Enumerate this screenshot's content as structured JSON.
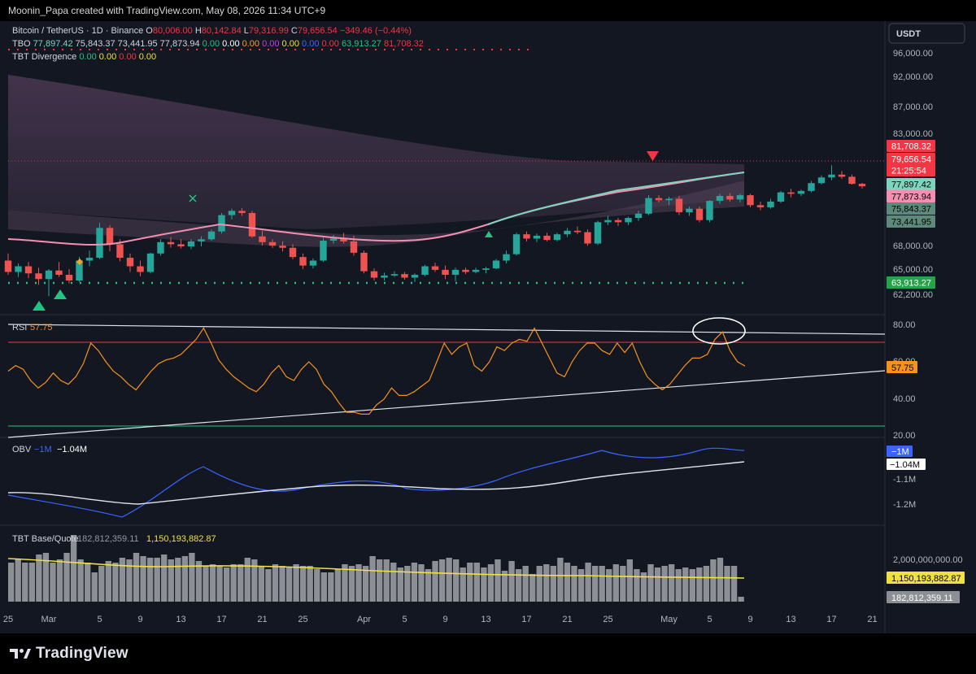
{
  "header": {
    "attribution": "Moonin_Papa created with TradingView.com, May 08, 2026 11:34 UTC+9"
  },
  "footer": {
    "brand": "TradingView",
    "logo_icon": "tradingview-logo-icon"
  },
  "legend": {
    "symbol": "Bitcoin / TetherUS · 1D · Binance",
    "ohlc": [
      {
        "label": "O",
        "value": "80,006.00"
      },
      {
        "label": "H",
        "value": "80,142.84"
      },
      {
        "label": "L",
        "value": "79,316.99"
      },
      {
        "label": "C",
        "value": "79,656.54"
      }
    ],
    "change": "−349.46 (−0.44%)",
    "tbo_label": "TBO",
    "tbo_values": [
      {
        "text": "77,897.42",
        "color": "#7fd4bd"
      },
      {
        "text": "75,843.37",
        "color": "#d1d4dc"
      },
      {
        "text": "73,441.95",
        "color": "#d1d4dc"
      },
      {
        "text": "77,873.94",
        "color": "#d1d4dc"
      },
      {
        "text": "0.00",
        "color": "#26c281"
      },
      {
        "text": "0.00",
        "color": "#ffffff"
      },
      {
        "text": "0.00",
        "color": "#f7a21b"
      },
      {
        "text": "0.00",
        "color": "#c33ce8"
      },
      {
        "text": "0.00",
        "color": "#f0e040"
      },
      {
        "text": "0.00",
        "color": "#3b64ff"
      },
      {
        "text": "0.00",
        "color": "#f23645"
      },
      {
        "text": "63,913.27",
        "color": "#26c281"
      },
      {
        "text": "81,708.32",
        "color": "#f23645"
      }
    ],
    "div_label": "TBT Divergence",
    "div_values": [
      {
        "text": "0.00",
        "color": "#26c281"
      },
      {
        "text": "0.00",
        "color": "#f0e040"
      },
      {
        "text": "0.00",
        "color": "#f23645"
      },
      {
        "text": "0.00",
        "color": "#f0e040"
      }
    ]
  },
  "currency_badge": "USDT",
  "chart_data": {
    "type": "candlestick",
    "price_axis_ticks": [
      "96,000.00",
      "92,000.00",
      "87,000.00",
      "83,000.00",
      "68,000.00",
      "65,000.00",
      "62,200.00"
    ],
    "price_badges": [
      {
        "text": "81,708.32",
        "bg": "#f23645",
        "fg": "#ffffff"
      },
      {
        "text": "79,656.54",
        "bg": "#f23645",
        "fg": "#ffffff"
      },
      {
        "text": "21:25:54",
        "bg": "#f23645",
        "fg": "#ffffff"
      },
      {
        "text": "77,897.42",
        "bg": "#7fd4bd",
        "fg": "#000000"
      },
      {
        "text": "77,873.94",
        "bg": "#f48fb1",
        "fg": "#000000"
      },
      {
        "text": "75,843.37",
        "bg": "#5d8a7a",
        "fg": "#000000"
      },
      {
        "text": "73,441.95",
        "bg": "#5d8a7a",
        "fg": "#000000"
      },
      {
        "text": "63,913.27",
        "bg": "#26a248",
        "fg": "#ffffff"
      }
    ],
    "x_labels": [
      {
        "text": "25",
        "x": -10
      },
      {
        "text": "Mar",
        "x": -6
      },
      {
        "text": "5",
        "x": -1
      },
      {
        "text": "9",
        "x": 3
      },
      {
        "text": "13",
        "x": 7
      },
      {
        "text": "17",
        "x": 11
      },
      {
        "text": "21",
        "x": 15
      },
      {
        "text": "25",
        "x": 19
      },
      {
        "text": "Apr",
        "x": 25
      },
      {
        "text": "5",
        "x": 29
      },
      {
        "text": "9",
        "x": 33
      },
      {
        "text": "13",
        "x": 37
      },
      {
        "text": "17",
        "x": 41
      },
      {
        "text": "21",
        "x": 45
      },
      {
        "text": "25",
        "x": 49
      },
      {
        "text": "May",
        "x": 55
      },
      {
        "text": "5",
        "x": 59
      },
      {
        "text": "9",
        "x": 63
      },
      {
        "text": "13",
        "x": 67
      },
      {
        "text": "17",
        "x": 71
      },
      {
        "text": "21",
        "x": 75
      }
    ],
    "candles": [
      {
        "x": -10,
        "o": 69200,
        "h": 70200,
        "l": 67200,
        "c": 67600
      },
      {
        "x": -9,
        "o": 67600,
        "h": 68800,
        "l": 66900,
        "c": 68400
      },
      {
        "x": -8,
        "o": 68400,
        "h": 69000,
        "l": 66700,
        "c": 67400
      },
      {
        "x": -7,
        "o": 67400,
        "h": 68200,
        "l": 65800,
        "c": 66600
      },
      {
        "x": -6,
        "o": 66600,
        "h": 68000,
        "l": 64200,
        "c": 67800
      },
      {
        "x": -5,
        "o": 67800,
        "h": 69000,
        "l": 66900,
        "c": 67200
      },
      {
        "x": -4,
        "o": 67200,
        "h": 68000,
        "l": 66000,
        "c": 66400
      },
      {
        "x": -3,
        "o": 66400,
        "h": 69700,
        "l": 66200,
        "c": 69200
      },
      {
        "x": -2,
        "o": 69200,
        "h": 70600,
        "l": 68400,
        "c": 69600
      },
      {
        "x": -1,
        "o": 69600,
        "h": 74500,
        "l": 69400,
        "c": 73800
      },
      {
        "x": 0,
        "o": 73800,
        "h": 74200,
        "l": 70500,
        "c": 71500
      },
      {
        "x": 1,
        "o": 71500,
        "h": 72200,
        "l": 69100,
        "c": 69600
      },
      {
        "x": 2,
        "o": 69600,
        "h": 70200,
        "l": 67600,
        "c": 68400
      },
      {
        "x": 3,
        "o": 68400,
        "h": 69200,
        "l": 67000,
        "c": 67600
      },
      {
        "x": 4,
        "o": 67600,
        "h": 70300,
        "l": 67400,
        "c": 70200
      },
      {
        "x": 5,
        "o": 70200,
        "h": 72200,
        "l": 69900,
        "c": 71800
      },
      {
        "x": 6,
        "o": 71800,
        "h": 72500,
        "l": 71000,
        "c": 71500
      },
      {
        "x": 7,
        "o": 71500,
        "h": 72200,
        "l": 70900,
        "c": 71200
      },
      {
        "x": 8,
        "o": 71200,
        "h": 72200,
        "l": 70800,
        "c": 71900
      },
      {
        "x": 9,
        "o": 71900,
        "h": 72600,
        "l": 71200,
        "c": 72200
      },
      {
        "x": 10,
        "o": 72200,
        "h": 73600,
        "l": 72000,
        "c": 73300
      },
      {
        "x": 11,
        "o": 73300,
        "h": 75900,
        "l": 73000,
        "c": 75600
      },
      {
        "x": 12,
        "o": 75600,
        "h": 76500,
        "l": 75000,
        "c": 76200
      },
      {
        "x": 13,
        "o": 76200,
        "h": 76600,
        "l": 75500,
        "c": 75900
      },
      {
        "x": 14,
        "o": 75900,
        "h": 76200,
        "l": 72400,
        "c": 72600
      },
      {
        "x": 15,
        "o": 72600,
        "h": 73400,
        "l": 71300,
        "c": 71800
      },
      {
        "x": 16,
        "o": 71800,
        "h": 72200,
        "l": 71000,
        "c": 71300
      },
      {
        "x": 17,
        "o": 71300,
        "h": 71900,
        "l": 70500,
        "c": 71000
      },
      {
        "x": 18,
        "o": 71000,
        "h": 71500,
        "l": 69400,
        "c": 69700
      },
      {
        "x": 19,
        "o": 69700,
        "h": 70200,
        "l": 68000,
        "c": 68500
      },
      {
        "x": 20,
        "o": 68500,
        "h": 69500,
        "l": 68100,
        "c": 69200
      },
      {
        "x": 21,
        "o": 69200,
        "h": 72400,
        "l": 69000,
        "c": 72000
      },
      {
        "x": 22,
        "o": 72000,
        "h": 72800,
        "l": 71600,
        "c": 72300
      },
      {
        "x": 23,
        "o": 72300,
        "h": 73100,
        "l": 71600,
        "c": 71900
      },
      {
        "x": 24,
        "o": 71900,
        "h": 72700,
        "l": 69900,
        "c": 70300
      },
      {
        "x": 25,
        "o": 70300,
        "h": 70600,
        "l": 67400,
        "c": 67700
      },
      {
        "x": 26,
        "o": 67700,
        "h": 68100,
        "l": 66400,
        "c": 66800
      },
      {
        "x": 27,
        "o": 66800,
        "h": 67500,
        "l": 66400,
        "c": 67100
      },
      {
        "x": 28,
        "o": 67100,
        "h": 67700,
        "l": 66900,
        "c": 67300
      },
      {
        "x": 29,
        "o": 67300,
        "h": 67600,
        "l": 66500,
        "c": 66800
      },
      {
        "x": 30,
        "o": 66800,
        "h": 67400,
        "l": 66200,
        "c": 67200
      },
      {
        "x": 31,
        "o": 67200,
        "h": 68600,
        "l": 67000,
        "c": 68400
      },
      {
        "x": 32,
        "o": 68400,
        "h": 68900,
        "l": 67600,
        "c": 67900
      },
      {
        "x": 33,
        "o": 67900,
        "h": 68500,
        "l": 66600,
        "c": 67200
      },
      {
        "x": 34,
        "o": 67200,
        "h": 68200,
        "l": 66300,
        "c": 67900
      },
      {
        "x": 35,
        "o": 67900,
        "h": 68200,
        "l": 67300,
        "c": 67600
      },
      {
        "x": 36,
        "o": 67600,
        "h": 68200,
        "l": 67400,
        "c": 67900
      },
      {
        "x": 37,
        "o": 67900,
        "h": 68300,
        "l": 67400,
        "c": 68100
      },
      {
        "x": 38,
        "o": 68100,
        "h": 69400,
        "l": 68000,
        "c": 69200
      },
      {
        "x": 39,
        "o": 69200,
        "h": 70600,
        "l": 68800,
        "c": 70100
      },
      {
        "x": 40,
        "o": 70100,
        "h": 73100,
        "l": 69900,
        "c": 72900
      },
      {
        "x": 41,
        "o": 72900,
        "h": 73300,
        "l": 71900,
        "c": 72300
      },
      {
        "x": 42,
        "o": 72300,
        "h": 73000,
        "l": 71800,
        "c": 72700
      },
      {
        "x": 43,
        "o": 72700,
        "h": 73100,
        "l": 71900,
        "c": 72100
      },
      {
        "x": 44,
        "o": 72100,
        "h": 73100,
        "l": 71900,
        "c": 72900
      },
      {
        "x": 45,
        "o": 72900,
        "h": 73800,
        "l": 72500,
        "c": 73400
      },
      {
        "x": 46,
        "o": 73400,
        "h": 74000,
        "l": 72900,
        "c": 73200
      },
      {
        "x": 47,
        "o": 73200,
        "h": 73600,
        "l": 71300,
        "c": 71600
      },
      {
        "x": 48,
        "o": 71600,
        "h": 74800,
        "l": 71400,
        "c": 74600
      },
      {
        "x": 49,
        "o": 74600,
        "h": 75500,
        "l": 74200,
        "c": 74900
      },
      {
        "x": 50,
        "o": 74900,
        "h": 75200,
        "l": 74100,
        "c": 74600
      },
      {
        "x": 51,
        "o": 74600,
        "h": 75400,
        "l": 74200,
        "c": 75200
      },
      {
        "x": 52,
        "o": 75200,
        "h": 76200,
        "l": 74800,
        "c": 75800
      },
      {
        "x": 53,
        "o": 75800,
        "h": 78400,
        "l": 75600,
        "c": 78000
      },
      {
        "x": 54,
        "o": 78000,
        "h": 78400,
        "l": 77400,
        "c": 77700
      },
      {
        "x": 55,
        "o": 77700,
        "h": 78200,
        "l": 77000,
        "c": 77900
      },
      {
        "x": 56,
        "o": 77900,
        "h": 78300,
        "l": 75600,
        "c": 76000
      },
      {
        "x": 57,
        "o": 76000,
        "h": 76800,
        "l": 75500,
        "c": 76500
      },
      {
        "x": 58,
        "o": 76500,
        "h": 76800,
        "l": 74600,
        "c": 74900
      },
      {
        "x": 59,
        "o": 74900,
        "h": 77700,
        "l": 74600,
        "c": 77600
      },
      {
        "x": 60,
        "o": 77600,
        "h": 78600,
        "l": 77200,
        "c": 78300
      },
      {
        "x": 61,
        "o": 78300,
        "h": 78700,
        "l": 77500,
        "c": 77800
      },
      {
        "x": 62,
        "o": 77800,
        "h": 78600,
        "l": 77400,
        "c": 78400
      },
      {
        "x": 63,
        "o": 78400,
        "h": 78600,
        "l": 76700,
        "c": 77000
      },
      {
        "x": 64,
        "o": 77000,
        "h": 77500,
        "l": 76300,
        "c": 76700
      },
      {
        "x": 65,
        "o": 76700,
        "h": 77900,
        "l": 76500,
        "c": 77500
      },
      {
        "x": 66,
        "o": 77500,
        "h": 79000,
        "l": 77300,
        "c": 78800
      },
      {
        "x": 67,
        "o": 78800,
        "h": 79300,
        "l": 78100,
        "c": 78600
      },
      {
        "x": 68,
        "o": 78600,
        "h": 79200,
        "l": 78300,
        "c": 79000
      },
      {
        "x": 69,
        "o": 79000,
        "h": 80400,
        "l": 78800,
        "c": 80100
      },
      {
        "x": 70,
        "o": 80100,
        "h": 81200,
        "l": 79900,
        "c": 80900
      },
      {
        "x": 71,
        "o": 80900,
        "h": 82600,
        "l": 80500,
        "c": 81300
      },
      {
        "x": 72,
        "o": 81300,
        "h": 81800,
        "l": 80700,
        "c": 81000
      },
      {
        "x": 73,
        "o": 81000,
        "h": 81300,
        "l": 79900,
        "c": 80000
      },
      {
        "x": 74,
        "o": 80006,
        "h": 80142.84,
        "l": 79316.99,
        "c": 79656.54
      }
    ],
    "rsi_ticks": [
      "80.00",
      "60.00",
      "40.00",
      "20.00"
    ],
    "rsi_label": "RSI",
    "rsi_value": "57.75",
    "rsi": [
      55,
      58,
      56,
      50,
      46,
      49,
      54,
      50,
      48,
      52,
      59,
      70,
      66,
      60,
      55,
      52,
      48,
      45,
      50,
      55,
      59,
      61,
      62,
      64,
      68,
      72,
      78,
      70,
      61,
      56,
      52,
      49,
      46,
      44,
      48,
      54,
      58,
      52,
      50,
      56,
      60,
      56,
      48,
      44,
      38,
      33,
      33,
      32,
      32,
      37,
      40,
      46,
      42,
      42,
      44,
      47,
      50,
      60,
      70,
      64,
      68,
      70,
      58,
      55,
      60,
      68,
      66,
      70,
      72,
      71,
      78,
      70,
      62,
      54,
      52,
      60,
      66,
      70,
      70,
      66,
      64,
      70,
      65,
      70,
      60,
      52,
      48,
      45,
      48,
      53,
      58,
      62,
      62,
      64,
      72,
      76,
      66,
      60,
      57.75
    ],
    "obv_ticks": [
      "-1.1M",
      "-1.2M"
    ],
    "obv_label": "OBV",
    "obv_value_1": "−1M",
    "obv_value_2": "−1.04M",
    "vol_ticks": [
      "2,000,000,000.00"
    ],
    "vol_label": "TBT Base/Quote",
    "vol_value_1": "182,812,359.11",
    "vol_value_2": "1,150,193,882.87"
  }
}
